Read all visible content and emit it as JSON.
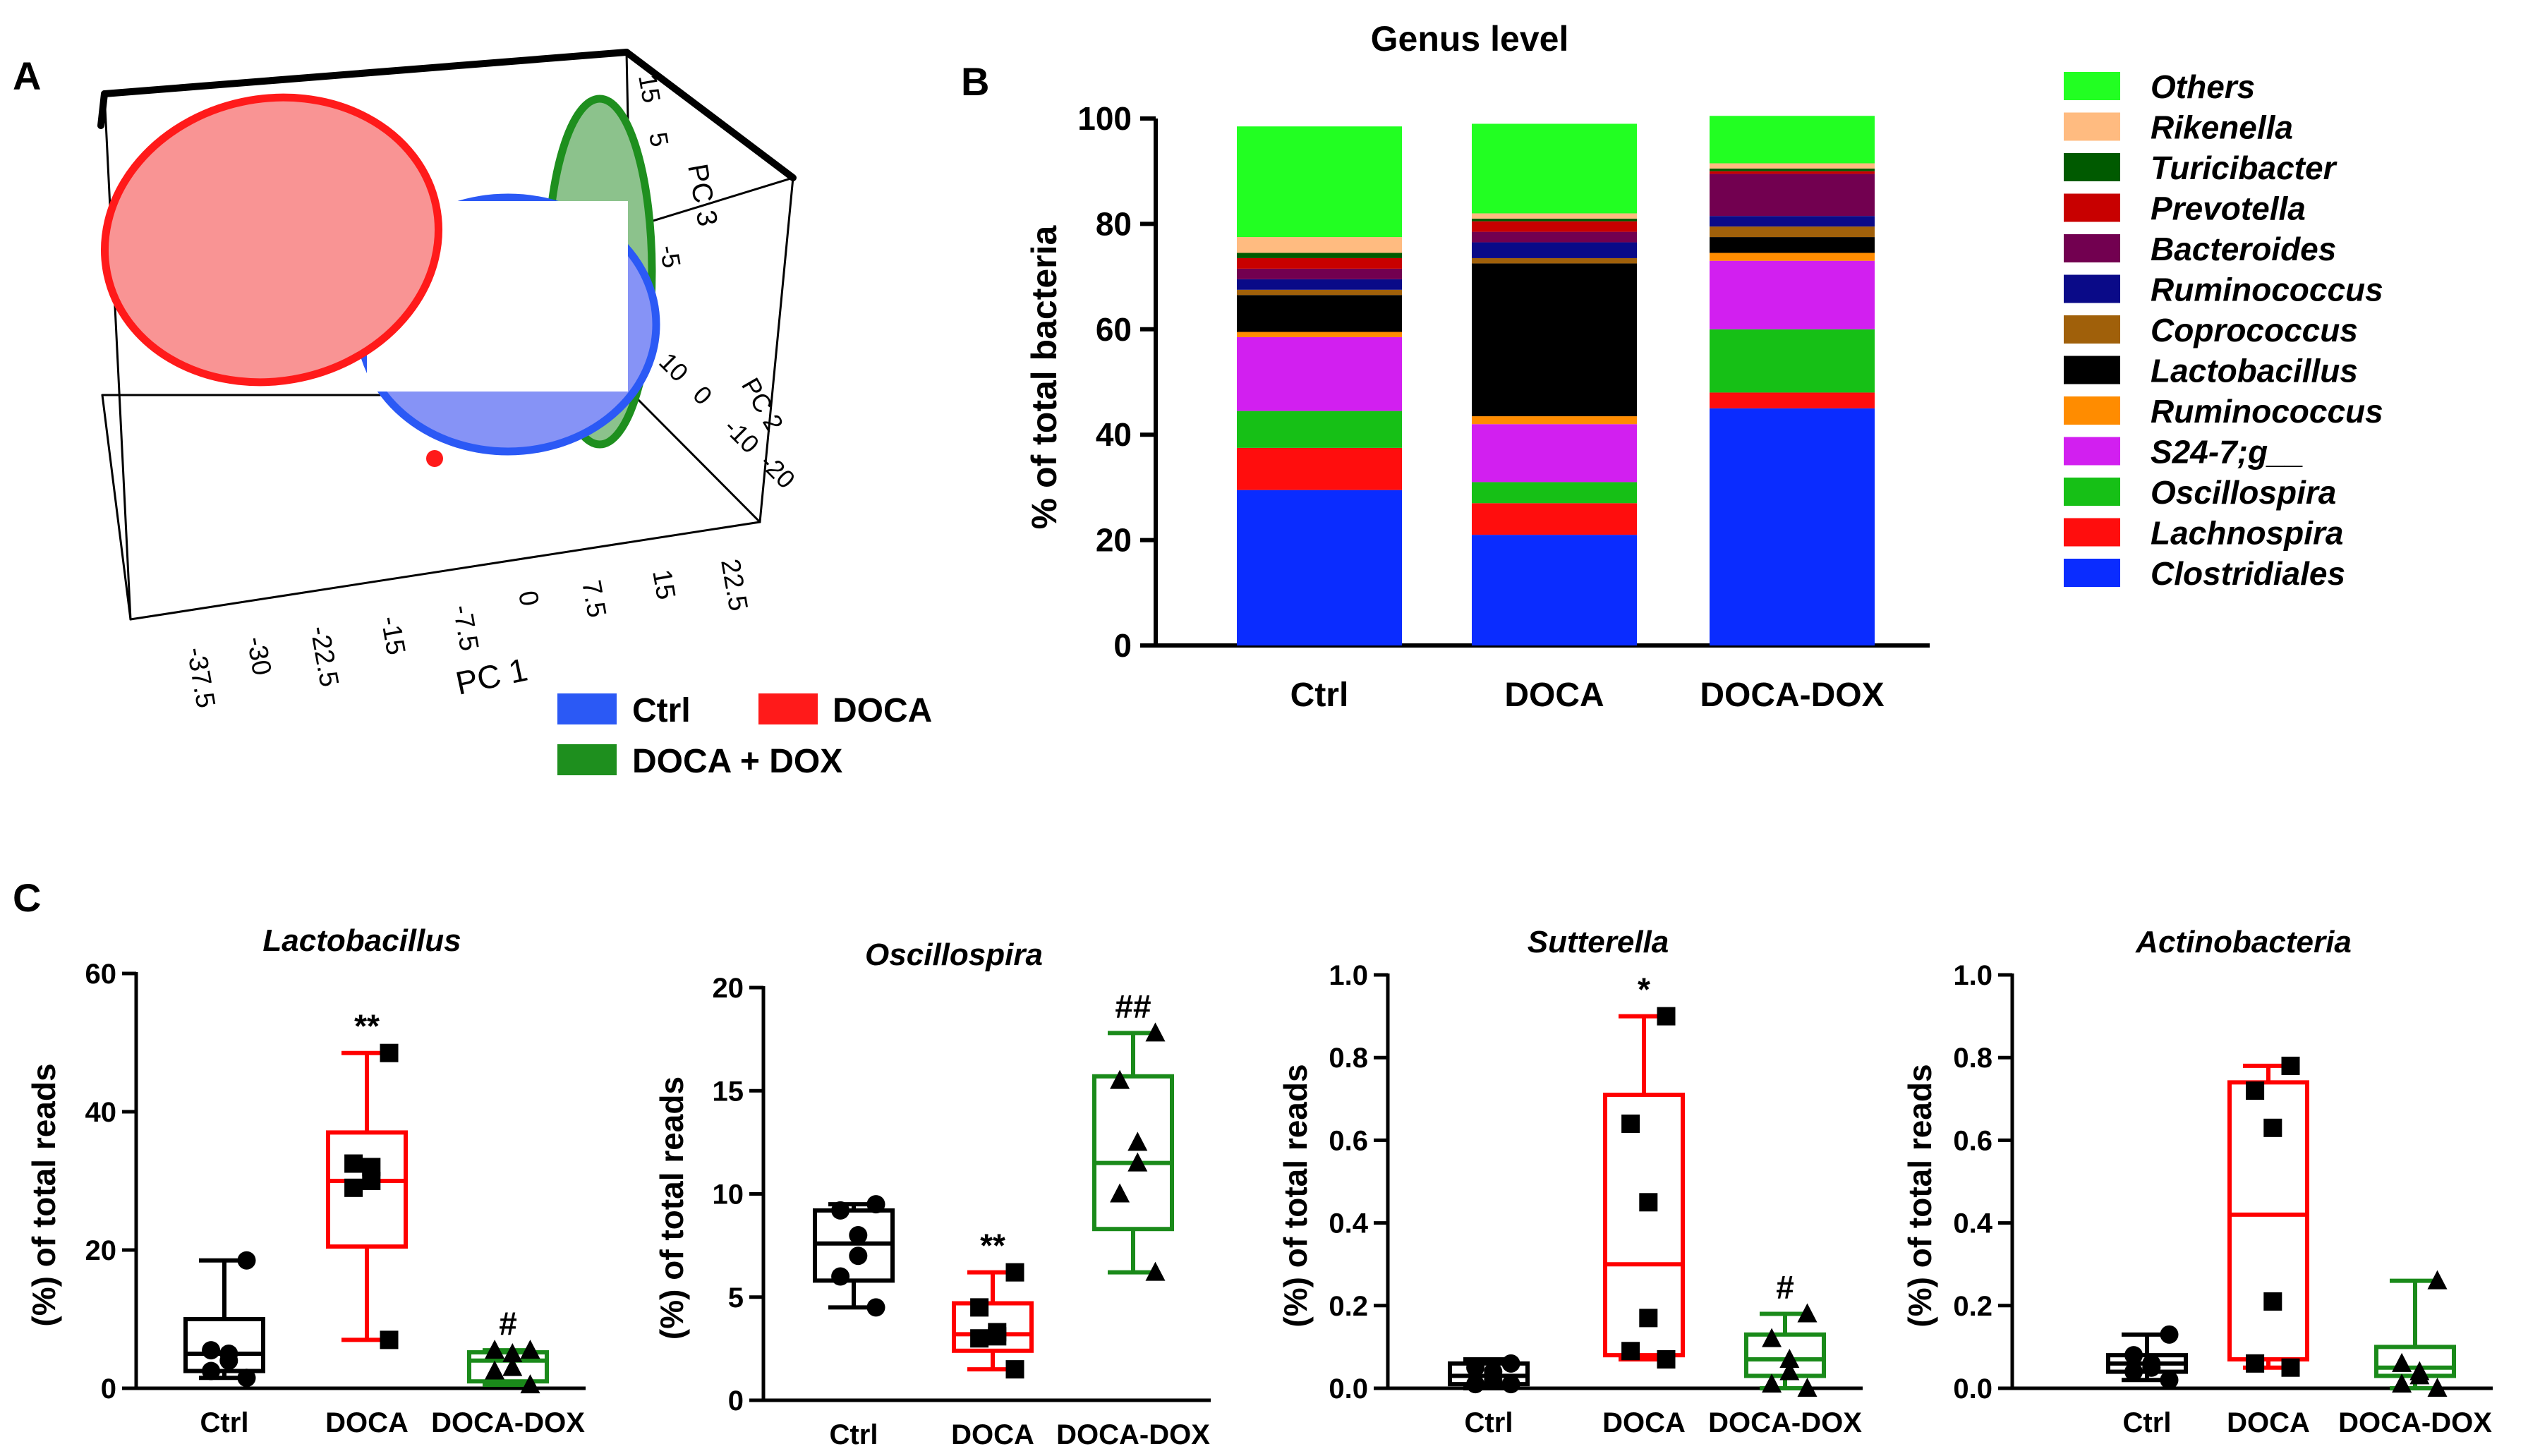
{
  "panelA": {
    "label": "A",
    "x_axis_label": "PC 1",
    "y_axis_label": "PC 2",
    "z_axis_label": "PC 3",
    "x_ticks": [
      "-37.5",
      "-30",
      "-22.5",
      "-15",
      "-7.5",
      "0",
      "7.5",
      "15",
      "22.5"
    ],
    "y_ticks": [
      "10",
      "0",
      "-10",
      "-20"
    ],
    "z_ticks": [
      "15",
      "5",
      "-5"
    ],
    "legend": [
      {
        "label": "Ctrl",
        "color": "#2b59f5"
      },
      {
        "label": "DOCA",
        "color": "#ff1a1a"
      },
      {
        "label": "DOCA + DOX",
        "color": "#1e8f1e"
      }
    ]
  },
  "chart_data": [
    {
      "id": "B",
      "panel_label": "B",
      "type": "bar",
      "stacked": true,
      "title": "Genus level",
      "xlabel": "",
      "ylabel": "% of total bacteria",
      "ylim": [
        0,
        100
      ],
      "yticks": [
        "0",
        "20",
        "40",
        "60",
        "80",
        "100"
      ],
      "categories": [
        "Ctrl",
        "DOCA",
        "DOCA-DOX"
      ],
      "series": [
        {
          "name": "Clostridiales",
          "color": "#0a2cff",
          "values": [
            29.5,
            21,
            45
          ]
        },
        {
          "name": "Lachnospira",
          "color": "#ff0d0d",
          "values": [
            8,
            6,
            3
          ]
        },
        {
          "name": "Oscillospira",
          "color": "#16c016",
          "values": [
            7,
            4,
            12
          ]
        },
        {
          "name": "S24-7;g__",
          "color": "#d21ff0",
          "values": [
            14,
            11,
            13
          ]
        },
        {
          "name": "Ruminococcus",
          "color": "#ff8c00",
          "values": [
            1,
            1.5,
            1.5
          ]
        },
        {
          "name": "Lactobacillus",
          "color": "#000000",
          "values": [
            7,
            29,
            3
          ]
        },
        {
          "name": "Coprococcus",
          "color": "#a0600a",
          "values": [
            1,
            1,
            2
          ]
        },
        {
          "name": "Ruminococcus",
          "color": "#0a0a88",
          "values": [
            2,
            3,
            2
          ]
        },
        {
          "name": "Bacteroides",
          "color": "#720050",
          "values": [
            2,
            2,
            8
          ]
        },
        {
          "name": "Prevotella",
          "color": "#c80000",
          "values": [
            2,
            2,
            0.5
          ]
        },
        {
          "name": "Turicibacter",
          "color": "#005a00",
          "values": [
            1,
            0.5,
            0.5
          ]
        },
        {
          "name": "Rikenella",
          "color": "#ffbb80",
          "values": [
            3,
            1,
            1
          ]
        },
        {
          "name": "Others",
          "color": "#22ff22",
          "values": [
            21,
            17,
            9
          ]
        }
      ],
      "legend_order": [
        "Others",
        "Rikenella",
        "Turicibacter",
        "Prevotella",
        "Bacteroides",
        "Ruminococcus",
        "Coprococcus",
        "Lactobacillus",
        "Ruminococcus",
        "S24-7;g__",
        "Oscillospira",
        "Lachnospira",
        "Clostridiales"
      ]
    },
    {
      "id": "C1",
      "panel_label": "C",
      "type": "box",
      "title": "Lactobacillus",
      "ylabel": "(%) of total reads",
      "ylim": [
        0,
        60
      ],
      "yticks": [
        "0",
        "20",
        "40",
        "60"
      ],
      "categories": [
        "Ctrl",
        "DOCA",
        "DOCA-DOX"
      ],
      "colors": [
        "#000000",
        "#ff0000",
        "#1a8a1a"
      ],
      "markers": [
        "circle",
        "square",
        "triangle"
      ],
      "boxes": [
        {
          "min": 1.5,
          "q1": 2.5,
          "median": 5,
          "q3": 10,
          "max": 18.5
        },
        {
          "min": 7,
          "q1": 20.5,
          "median": 30,
          "q3": 37,
          "max": 48.5
        },
        {
          "min": 0.5,
          "q1": 1,
          "median": 4,
          "q3": 5.2,
          "max": 5.5
        }
      ],
      "points": [
        [
          18.5,
          5.5,
          5,
          4,
          2.5,
          1.5
        ],
        [
          48.5,
          32.5,
          32,
          30,
          29,
          7
        ],
        [
          5.5,
          5.5,
          5,
          3,
          2.5,
          0.5
        ]
      ],
      "annotations": [
        "",
        "**",
        "#"
      ]
    },
    {
      "id": "C2",
      "type": "box",
      "title": "Oscillospira",
      "ylabel": "(%) of total reads",
      "ylim": [
        0,
        20
      ],
      "yticks": [
        "0",
        "5",
        "10",
        "15",
        "20"
      ],
      "categories": [
        "Ctrl",
        "DOCA",
        "DOCA-DOX"
      ],
      "colors": [
        "#000000",
        "#ff0000",
        "#1a8a1a"
      ],
      "markers": [
        "circle",
        "square",
        "triangle"
      ],
      "boxes": [
        {
          "min": 4.5,
          "q1": 5.8,
          "median": 7.6,
          "q3": 9.2,
          "max": 9.5
        },
        {
          "min": 1.5,
          "q1": 2.4,
          "median": 3.2,
          "q3": 4.7,
          "max": 6.2
        },
        {
          "min": 6.2,
          "q1": 8.3,
          "median": 11.5,
          "q3": 15.7,
          "max": 17.8
        }
      ],
      "points": [
        [
          9.5,
          9.2,
          8,
          7,
          6,
          4.5
        ],
        [
          6.2,
          4.5,
          3.3,
          3.1,
          3,
          1.5
        ],
        [
          17.8,
          15.5,
          12.5,
          11.5,
          10,
          6.2
        ]
      ],
      "annotations": [
        "",
        "**",
        "##"
      ]
    },
    {
      "id": "C3",
      "type": "box",
      "title": "Sutterella",
      "ylabel": "(%) of total reads",
      "ylim": [
        0,
        1.0
      ],
      "yticks": [
        "0.0",
        "0.2",
        "0.4",
        "0.6",
        "0.8",
        "1.0"
      ],
      "categories": [
        "Ctrl",
        "DOCA",
        "DOCA-DOX"
      ],
      "colors": [
        "#000000",
        "#ff0000",
        "#1a8a1a"
      ],
      "markers": [
        "circle",
        "square",
        "triangle"
      ],
      "boxes": [
        {
          "min": 0.0,
          "q1": 0.01,
          "median": 0.03,
          "q3": 0.06,
          "max": 0.07
        },
        {
          "min": 0.07,
          "q1": 0.08,
          "median": 0.3,
          "q3": 0.71,
          "max": 0.9
        },
        {
          "min": 0.0,
          "q1": 0.03,
          "median": 0.07,
          "q3": 0.13,
          "max": 0.18
        }
      ],
      "points": [
        [
          0.06,
          0.05,
          0.04,
          0.02,
          0.01,
          0.01
        ],
        [
          0.9,
          0.64,
          0.45,
          0.17,
          0.09,
          0.07
        ],
        [
          0.18,
          0.12,
          0.07,
          0.04,
          0.01,
          0.0
        ]
      ],
      "annotations": [
        "",
        "*",
        "#"
      ]
    },
    {
      "id": "C4",
      "type": "box",
      "title": "Actinobacteria",
      "ylabel": "(%) of total reads",
      "ylim": [
        0,
        1.0
      ],
      "yticks": [
        "0.0",
        "0.2",
        "0.4",
        "0.6",
        "0.8",
        "1.0"
      ],
      "categories": [
        "Ctrl",
        "DOCA",
        "DOCA-DOX"
      ],
      "colors": [
        "#000000",
        "#ff0000",
        "#1a8a1a"
      ],
      "markers": [
        "circle",
        "square",
        "triangle"
      ],
      "boxes": [
        {
          "min": 0.02,
          "q1": 0.04,
          "median": 0.06,
          "q3": 0.08,
          "max": 0.13
        },
        {
          "min": 0.05,
          "q1": 0.07,
          "median": 0.42,
          "q3": 0.74,
          "max": 0.78
        },
        {
          "min": 0.0,
          "q1": 0.03,
          "median": 0.05,
          "q3": 0.1,
          "max": 0.26
        }
      ],
      "points": [
        [
          0.13,
          0.08,
          0.06,
          0.05,
          0.04,
          0.02
        ],
        [
          0.78,
          0.72,
          0.63,
          0.21,
          0.06,
          0.05
        ],
        [
          0.26,
          0.06,
          0.04,
          0.03,
          0.01,
          0.0
        ]
      ],
      "annotations": [
        "",
        "",
        ""
      ]
    }
  ]
}
